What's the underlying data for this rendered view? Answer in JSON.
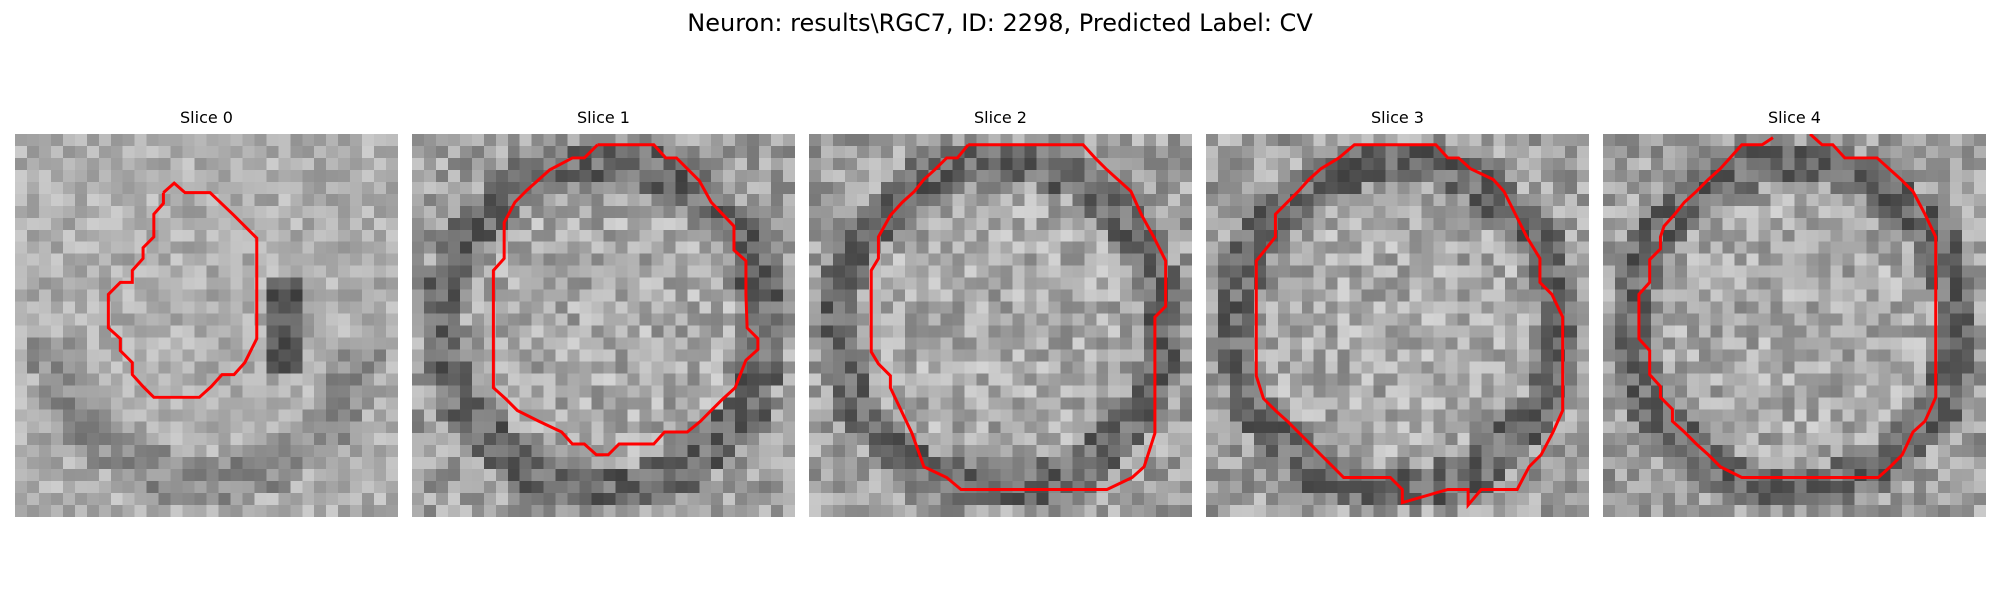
{
  "figure": {
    "title": "Neuron: results\\RGC7, ID: 2298, Predicted Label: CV",
    "contour_color": "#ff0000"
  },
  "panels": [
    {
      "title": "Slice 0",
      "seed": 11,
      "tone": "light"
    },
    {
      "title": "Slice 1",
      "seed": 23,
      "tone": "ring"
    },
    {
      "title": "Slice 2",
      "seed": 37,
      "tone": "ring"
    },
    {
      "title": "Slice 3",
      "seed": 41,
      "tone": "ring"
    },
    {
      "title": "Slice 4",
      "seed": 53,
      "tone": "ring"
    }
  ]
}
